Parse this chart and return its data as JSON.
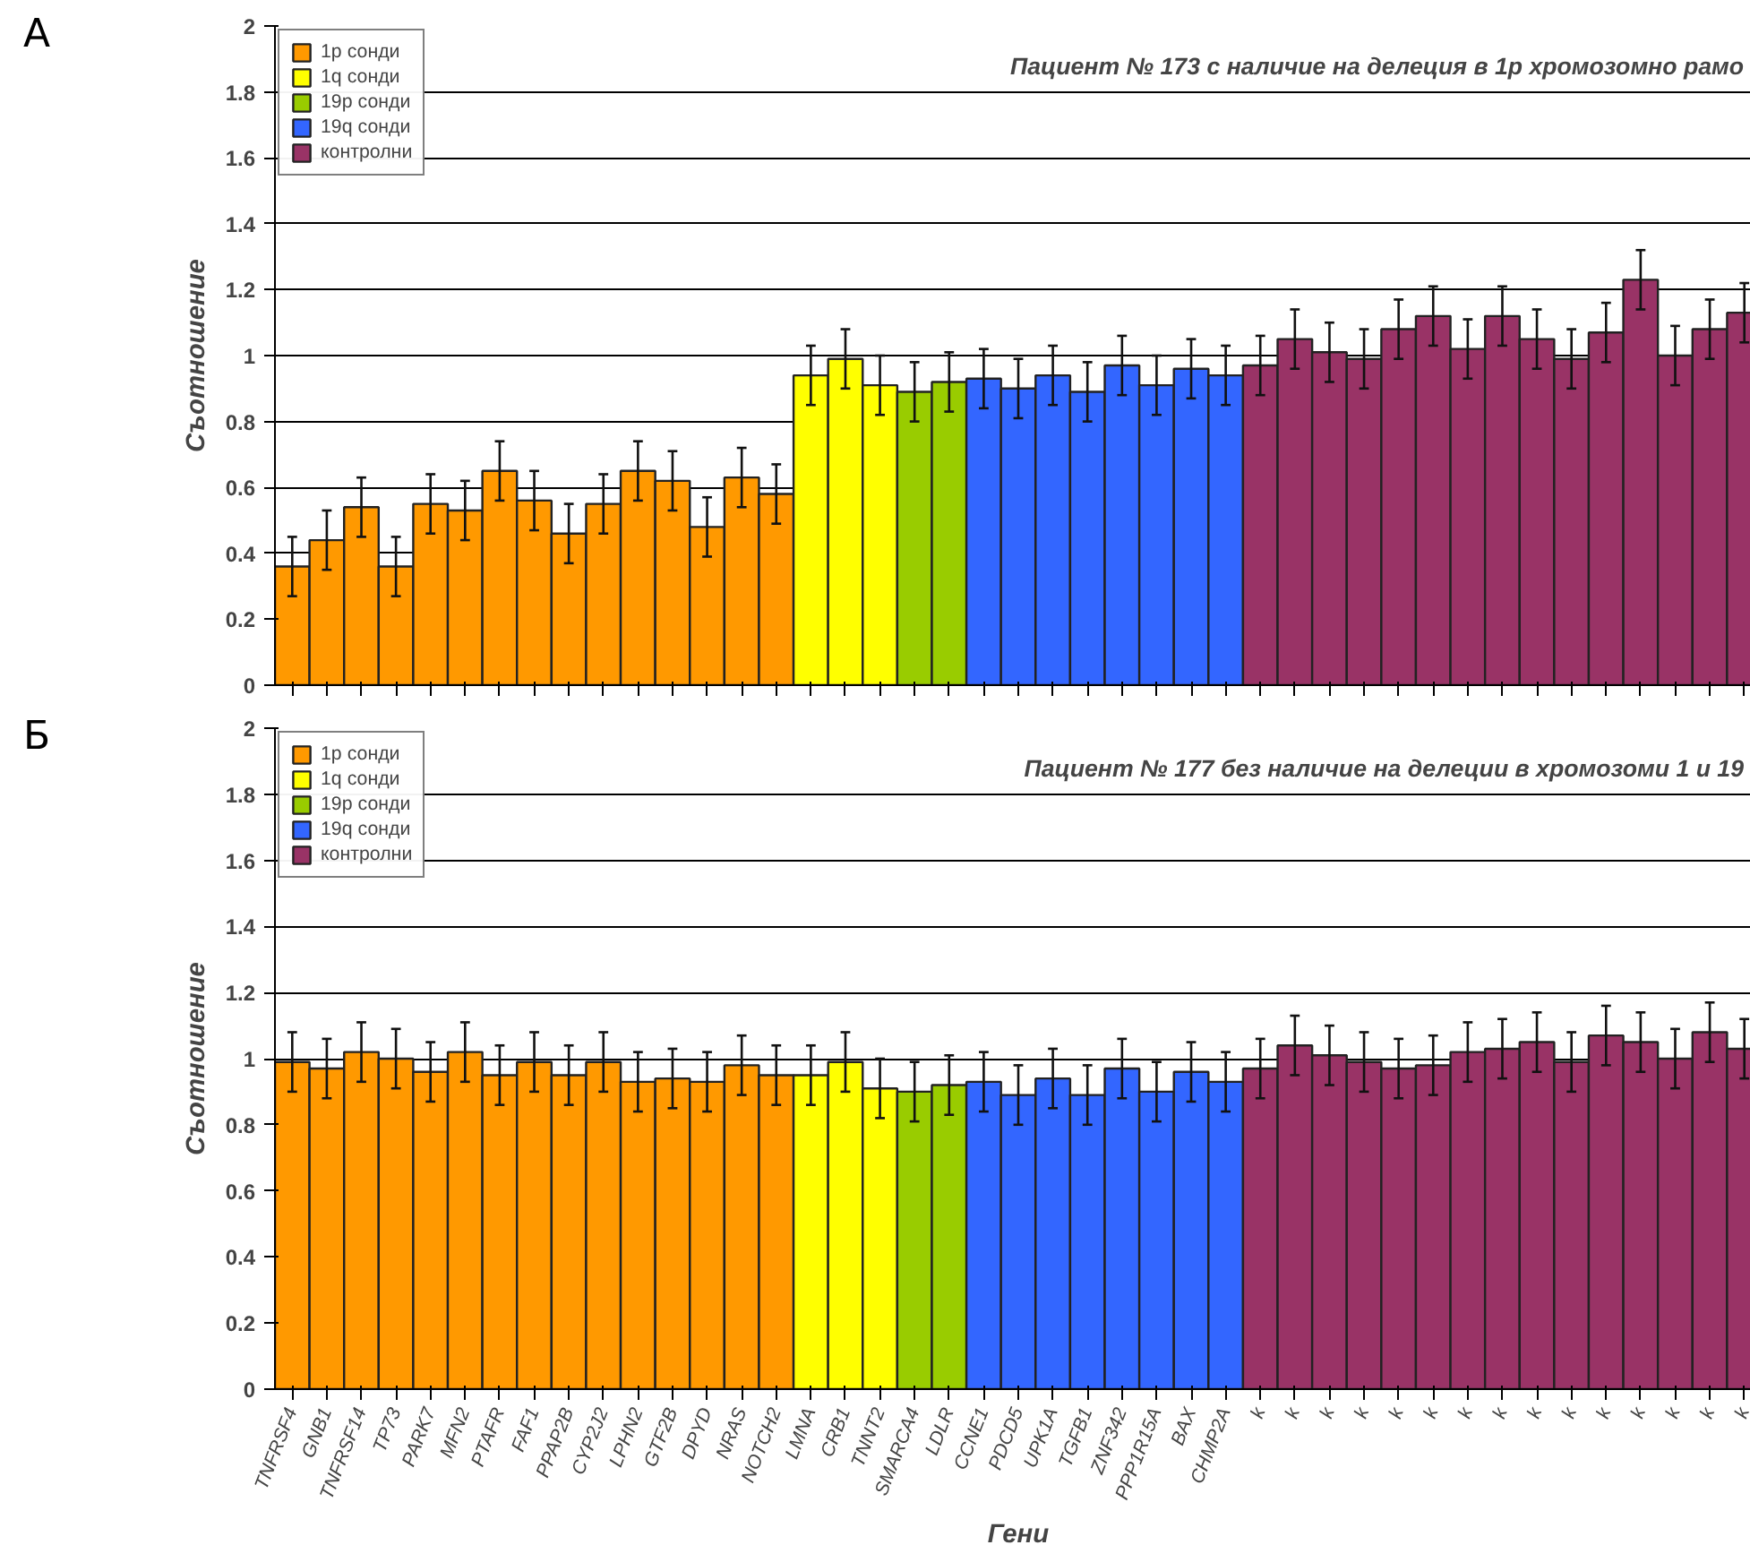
{
  "chart_data": [
    {
      "type": "bar",
      "title": "Пациент № 173 с наличие на делеция в 1р хромозомно рамо",
      "ylabel": "Съотношение",
      "annotations": [
        "А"
      ],
      "categories": [
        null,
        null,
        null,
        null,
        null,
        null,
        null,
        null,
        null,
        null,
        null,
        null,
        null,
        null,
        null,
        null,
        null,
        null,
        null,
        null,
        null,
        null,
        null,
        null,
        null,
        null,
        null,
        null,
        null,
        null,
        null,
        null,
        null,
        null,
        null,
        null,
        null,
        null,
        null,
        null,
        null,
        null,
        null
      ],
      "ylim": [
        0,
        2
      ],
      "yticks": [
        0,
        0.2,
        0.4,
        0.6,
        0.8,
        1,
        1.2,
        1.4,
        1.6,
        1.8,
        2
      ],
      "grid": "y",
      "legend": "top left",
      "tick_labels": "y",
      "series": [
        {
          "name": "1р сонди",
          "color": "#ff9900",
          "values": [
            0.36,
            0.44,
            0.54,
            0.36,
            0.55,
            0.53,
            0.65,
            0.56,
            0.46,
            0.55,
            0.65,
            0.62,
            0.48,
            0.63,
            0.58,
            null,
            null,
            null,
            null,
            null,
            null,
            null,
            null,
            null,
            null,
            null,
            null,
            null,
            null,
            null,
            null,
            null,
            null,
            null,
            null,
            null,
            null,
            null,
            null,
            null,
            null,
            null,
            null
          ],
          "errors": [
            0.09,
            0.09,
            0.09,
            0.09,
            0.09,
            0.09,
            0.09,
            0.09,
            0.09,
            0.09,
            0.09,
            0.09,
            0.09,
            0.09,
            0.09,
            null,
            null,
            null,
            null,
            null,
            null,
            null,
            null,
            null,
            null,
            null,
            null,
            null,
            null,
            null,
            null,
            null,
            null,
            null,
            null,
            null,
            null,
            null,
            null,
            null,
            null,
            null,
            null
          ]
        },
        {
          "name": "1q сонди",
          "color": "#ffff00",
          "values": [
            null,
            null,
            null,
            null,
            null,
            null,
            null,
            null,
            null,
            null,
            null,
            null,
            null,
            null,
            null,
            0.94,
            0.99,
            0.91,
            null,
            null,
            null,
            null,
            null,
            null,
            null,
            null,
            null,
            null,
            null,
            null,
            null,
            null,
            null,
            null,
            null,
            null,
            null,
            null,
            null,
            null,
            null,
            null,
            null
          ],
          "errors": [
            null,
            null,
            null,
            null,
            null,
            null,
            null,
            null,
            null,
            null,
            null,
            null,
            null,
            null,
            null,
            0.09,
            0.09,
            0.09,
            null,
            null,
            null,
            null,
            null,
            null,
            null,
            null,
            null,
            null,
            null,
            null,
            null,
            null,
            null,
            null,
            null,
            null,
            null,
            null,
            null,
            null,
            null,
            null,
            null
          ]
        },
        {
          "name": "19р сонди",
          "color": "#99cc00",
          "values": [
            null,
            null,
            null,
            null,
            null,
            null,
            null,
            null,
            null,
            null,
            null,
            null,
            null,
            null,
            null,
            null,
            null,
            null,
            0.89,
            0.92,
            null,
            null,
            null,
            null,
            null,
            null,
            null,
            null,
            null,
            null,
            null,
            null,
            null,
            null,
            null,
            null,
            null,
            null,
            null,
            null,
            null,
            null,
            null
          ],
          "errors": [
            null,
            null,
            null,
            null,
            null,
            null,
            null,
            null,
            null,
            null,
            null,
            null,
            null,
            null,
            null,
            null,
            null,
            null,
            0.09,
            0.09,
            null,
            null,
            null,
            null,
            null,
            null,
            null,
            null,
            null,
            null,
            null,
            null,
            null,
            null,
            null,
            null,
            null,
            null,
            null,
            null,
            null,
            null,
            null
          ]
        },
        {
          "name": "19q сонди",
          "color": "#3366ff",
          "values": [
            null,
            null,
            null,
            null,
            null,
            null,
            null,
            null,
            null,
            null,
            null,
            null,
            null,
            null,
            null,
            null,
            null,
            null,
            null,
            null,
            0.93,
            0.9,
            0.94,
            0.89,
            0.97,
            0.91,
            0.96,
            0.94,
            null,
            null,
            null,
            null,
            null,
            null,
            null,
            null,
            null,
            null,
            null,
            null,
            null,
            null,
            null
          ],
          "errors": [
            null,
            null,
            null,
            null,
            null,
            null,
            null,
            null,
            null,
            null,
            null,
            null,
            null,
            null,
            null,
            null,
            null,
            null,
            null,
            null,
            0.09,
            0.09,
            0.09,
            0.09,
            0.09,
            0.09,
            0.09,
            0.09,
            null,
            null,
            null,
            null,
            null,
            null,
            null,
            null,
            null,
            null,
            null,
            null,
            null,
            null,
            null
          ]
        },
        {
          "name": "контролни",
          "color": "#993366",
          "values": [
            null,
            null,
            null,
            null,
            null,
            null,
            null,
            null,
            null,
            null,
            null,
            null,
            null,
            null,
            null,
            null,
            null,
            null,
            null,
            null,
            null,
            null,
            null,
            null,
            null,
            null,
            null,
            null,
            0.97,
            1.05,
            1.01,
            0.99,
            1.08,
            1.12,
            1.02,
            1.12,
            1.05,
            0.99,
            1.07,
            1.23,
            1.0,
            1.08,
            1.13
          ],
          "errors": [
            null,
            null,
            null,
            null,
            null,
            null,
            null,
            null,
            null,
            null,
            null,
            null,
            null,
            null,
            null,
            null,
            null,
            null,
            null,
            null,
            null,
            null,
            null,
            null,
            null,
            null,
            null,
            null,
            0.09,
            0.09,
            0.09,
            0.09,
            0.09,
            0.09,
            0.09,
            0.09,
            0.09,
            0.09,
            0.09,
            0.09,
            0.09,
            0.09,
            0.09
          ]
        }
      ]
    },
    {
      "type": "bar",
      "title": "Пациент № 177 без наличие на делеции в хромозоми 1 и 19",
      "ylabel": "Съотношение",
      "xlabel": "Гени",
      "annotations": [
        "Б"
      ],
      "categories": [
        "TNFRSF4",
        "GNB1",
        "TNFRSF14",
        "TP73",
        "PARK7",
        "MFN2",
        "PTAFR",
        "FAF1",
        "PPAP2B",
        "CYP2J2",
        "LPHN2",
        "GTF2B",
        "DPYD",
        "NRAS",
        "NOTCH2",
        "LMNA",
        "CRB1",
        "TNNT2",
        "SMARCA4",
        "LDLR",
        "CCNE1",
        "PDCD5",
        "UPK1A",
        "TGFB1",
        "ZNF342",
        "PPP1R15A",
        "BAX",
        "CHMP2A",
        "k",
        "k",
        "k",
        "k",
        "k",
        "k",
        "k",
        "k",
        "k",
        "k",
        "k",
        "k",
        "k",
        "k",
        "k"
      ],
      "ylim": [
        0,
        2
      ],
      "yticks": [
        0,
        0.2,
        0.4,
        0.6,
        0.8,
        1,
        1.2,
        1.4,
        1.6,
        1.8,
        2
      ],
      "grid": "y",
      "legend": "top left",
      "series": [
        {
          "name": "1р сонди",
          "color": "#ff9900",
          "values": [
            0.99,
            0.97,
            1.02,
            1.0,
            0.96,
            1.02,
            0.95,
            0.99,
            0.95,
            0.99,
            0.93,
            0.94,
            0.93,
            0.98,
            0.95,
            null,
            null,
            null,
            null,
            null,
            null,
            null,
            null,
            null,
            null,
            null,
            null,
            null,
            null,
            null,
            null,
            null,
            null,
            null,
            null,
            null,
            null,
            null,
            null,
            null,
            null,
            null,
            null
          ],
          "errors": [
            0.09,
            0.09,
            0.09,
            0.09,
            0.09,
            0.09,
            0.09,
            0.09,
            0.09,
            0.09,
            0.09,
            0.09,
            0.09,
            0.09,
            0.09,
            null,
            null,
            null,
            null,
            null,
            null,
            null,
            null,
            null,
            null,
            null,
            null,
            null,
            null,
            null,
            null,
            null,
            null,
            null,
            null,
            null,
            null,
            null,
            null,
            null,
            null,
            null,
            null
          ]
        },
        {
          "name": "1q сонди",
          "color": "#ffff00",
          "values": [
            null,
            null,
            null,
            null,
            null,
            null,
            null,
            null,
            null,
            null,
            null,
            null,
            null,
            null,
            null,
            0.95,
            0.99,
            0.91,
            null,
            null,
            null,
            null,
            null,
            null,
            null,
            null,
            null,
            null,
            null,
            null,
            null,
            null,
            null,
            null,
            null,
            null,
            null,
            null,
            null,
            null,
            null,
            null,
            null
          ],
          "errors": [
            null,
            null,
            null,
            null,
            null,
            null,
            null,
            null,
            null,
            null,
            null,
            null,
            null,
            null,
            null,
            0.09,
            0.09,
            0.09,
            null,
            null,
            null,
            null,
            null,
            null,
            null,
            null,
            null,
            null,
            null,
            null,
            null,
            null,
            null,
            null,
            null,
            null,
            null,
            null,
            null,
            null,
            null,
            null,
            null
          ]
        },
        {
          "name": "19р сонди",
          "color": "#99cc00",
          "values": [
            null,
            null,
            null,
            null,
            null,
            null,
            null,
            null,
            null,
            null,
            null,
            null,
            null,
            null,
            null,
            null,
            null,
            null,
            0.9,
            0.92,
            null,
            null,
            null,
            null,
            null,
            null,
            null,
            null,
            null,
            null,
            null,
            null,
            null,
            null,
            null,
            null,
            null,
            null,
            null,
            null,
            null,
            null,
            null
          ],
          "errors": [
            null,
            null,
            null,
            null,
            null,
            null,
            null,
            null,
            null,
            null,
            null,
            null,
            null,
            null,
            null,
            null,
            null,
            null,
            0.09,
            0.09,
            null,
            null,
            null,
            null,
            null,
            null,
            null,
            null,
            null,
            null,
            null,
            null,
            null,
            null,
            null,
            null,
            null,
            null,
            null,
            null,
            null,
            null,
            null
          ]
        },
        {
          "name": "19q сонди",
          "color": "#3366ff",
          "values": [
            null,
            null,
            null,
            null,
            null,
            null,
            null,
            null,
            null,
            null,
            null,
            null,
            null,
            null,
            null,
            null,
            null,
            null,
            null,
            null,
            0.93,
            0.89,
            0.94,
            0.89,
            0.97,
            0.9,
            0.96,
            0.93,
            null,
            null,
            null,
            null,
            null,
            null,
            null,
            null,
            null,
            null,
            null,
            null,
            null,
            null,
            null
          ],
          "errors": [
            null,
            null,
            null,
            null,
            null,
            null,
            null,
            null,
            null,
            null,
            null,
            null,
            null,
            null,
            null,
            null,
            null,
            null,
            null,
            null,
            0.09,
            0.09,
            0.09,
            0.09,
            0.09,
            0.09,
            0.09,
            0.09,
            null,
            null,
            null,
            null,
            null,
            null,
            null,
            null,
            null,
            null,
            null,
            null,
            null,
            null,
            null
          ]
        },
        {
          "name": "контролни",
          "color": "#993366",
          "values": [
            null,
            null,
            null,
            null,
            null,
            null,
            null,
            null,
            null,
            null,
            null,
            null,
            null,
            null,
            null,
            null,
            null,
            null,
            null,
            null,
            null,
            null,
            null,
            null,
            null,
            null,
            null,
            null,
            0.97,
            1.04,
            1.01,
            0.99,
            0.97,
            0.98,
            1.02,
            1.03,
            1.05,
            0.99,
            1.07,
            1.05,
            1.0,
            1.08,
            1.03
          ],
          "errors": [
            null,
            null,
            null,
            null,
            null,
            null,
            null,
            null,
            null,
            null,
            null,
            null,
            null,
            null,
            null,
            null,
            null,
            null,
            null,
            null,
            null,
            null,
            null,
            null,
            null,
            null,
            null,
            null,
            0.09,
            0.09,
            0.09,
            0.09,
            0.09,
            0.09,
            0.09,
            0.09,
            0.09,
            0.09,
            0.09,
            0.09,
            0.09,
            0.09,
            0.09
          ]
        }
      ]
    }
  ]
}
